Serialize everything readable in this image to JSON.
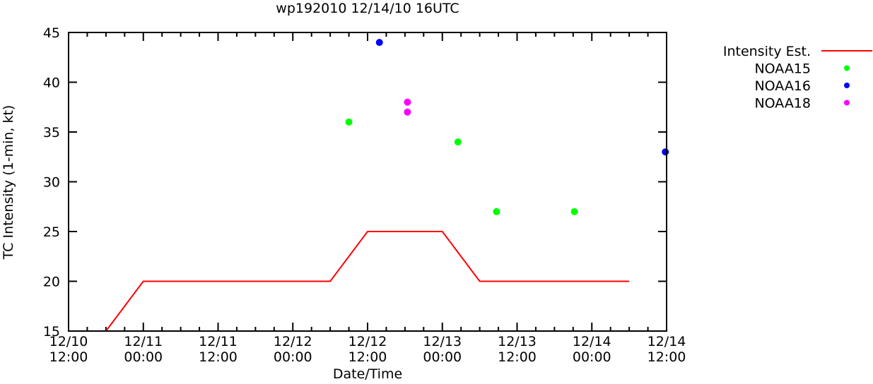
{
  "chart_data": {
    "type": "scatter",
    "title": "wp192010 12/14/10 16UTC",
    "xlabel": "Date/Time",
    "ylabel": "TC Intensity (1-min, kt)",
    "x_units": "hours since 12/10 12:00",
    "xlim": [
      0,
      96
    ],
    "ylim": [
      15,
      45
    ],
    "xticks": [
      {
        "value": 0,
        "line1": "12/10",
        "line2": "12:00"
      },
      {
        "value": 12,
        "line1": "12/11",
        "line2": "00:00"
      },
      {
        "value": 24,
        "line1": "12/11",
        "line2": "12:00"
      },
      {
        "value": 36,
        "line1": "12/12",
        "line2": "00:00"
      },
      {
        "value": 48,
        "line1": "12/12",
        "line2": "12:00"
      },
      {
        "value": 60,
        "line1": "12/13",
        "line2": "00:00"
      },
      {
        "value": 72,
        "line1": "12/13",
        "line2": "12:00"
      },
      {
        "value": 84,
        "line1": "12/14",
        "line2": "00:00"
      },
      {
        "value": 96,
        "line1": "12/14",
        "line2": "12:00"
      }
    ],
    "yticks": [
      "15",
      "20",
      "25",
      "30",
      "35",
      "40",
      "45"
    ],
    "legend_position": "outside-right",
    "series": [
      {
        "name": "Intensity Est.",
        "kind": "line",
        "color": "#ff0000",
        "x": [
          6,
          12,
          42,
          48,
          60,
          66,
          90
        ],
        "y": [
          15,
          20,
          20,
          25,
          25,
          20,
          20
        ]
      },
      {
        "name": "NOAA15",
        "kind": "points",
        "color": "#00ff00",
        "x": [
          45,
          62.5,
          68.7,
          81.2
        ],
        "y": [
          36,
          34,
          27,
          27
        ]
      },
      {
        "name": "NOAA16",
        "kind": "points",
        "color": "#0000ff",
        "x": [
          49.9,
          95.8
        ],
        "y": [
          44,
          33
        ]
      },
      {
        "name": "NOAA18",
        "kind": "points",
        "color": "#ff00ff",
        "x": [
          54.4,
          54.4
        ],
        "y": [
          38,
          37
        ]
      }
    ]
  }
}
